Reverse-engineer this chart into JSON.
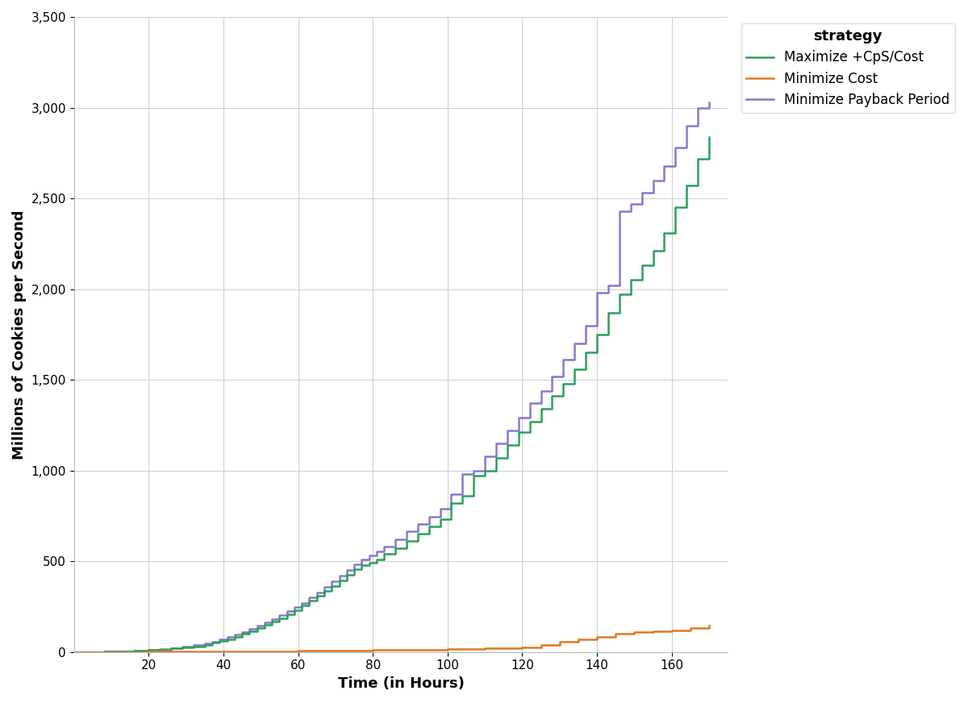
{
  "title": "",
  "xlabel": "Time (in Hours)",
  "ylabel": "Millions of Cookies per Second",
  "xlim": [
    0,
    175
  ],
  "ylim": [
    0,
    3500
  ],
  "yticks": [
    0,
    500,
    1000,
    1500,
    2000,
    2500,
    3000,
    3500
  ],
  "xticks": [
    20,
    40,
    60,
    80,
    100,
    120,
    140,
    160
  ],
  "legend_title": "strategy",
  "background_color": "#ffffff",
  "grid_color": "#d0d0d0",
  "series": [
    {
      "label": "Maximize +CpS/Cost",
      "color": "#2ca05a",
      "linewidth": 1.8,
      "x": [
        0,
        8,
        12,
        16,
        20,
        23,
        26,
        29,
        32,
        35,
        37,
        39,
        41,
        43,
        45,
        47,
        49,
        51,
        53,
        55,
        57,
        59,
        61,
        63,
        65,
        67,
        69,
        71,
        73,
        75,
        77,
        79,
        81,
        83,
        86,
        89,
        92,
        95,
        98,
        101,
        104,
        107,
        110,
        113,
        116,
        119,
        122,
        125,
        128,
        131,
        134,
        137,
        140,
        143,
        146,
        149,
        152,
        155,
        158,
        161,
        164,
        167,
        170
      ],
      "y": [
        0,
        2,
        4,
        7,
        10,
        14,
        19,
        25,
        32,
        40,
        50,
        60,
        72,
        85,
        100,
        115,
        130,
        148,
        166,
        185,
        207,
        230,
        255,
        282,
        308,
        335,
        365,
        395,
        425,
        455,
        480,
        490,
        510,
        540,
        570,
        610,
        650,
        690,
        730,
        820,
        860,
        970,
        1000,
        1070,
        1140,
        1210,
        1270,
        1340,
        1410,
        1480,
        1560,
        1650,
        1750,
        1870,
        1970,
        2050,
        2130,
        2210,
        2310,
        2450,
        2570,
        2720,
        2840
      ]
    },
    {
      "label": "Minimize Cost",
      "color": "#e07820",
      "linewidth": 1.8,
      "x": [
        0,
        20,
        40,
        60,
        80,
        100,
        110,
        120,
        125,
        130,
        135,
        140,
        145,
        150,
        155,
        160,
        165,
        170
      ],
      "y": [
        0,
        1,
        3,
        7,
        12,
        18,
        22,
        27,
        40,
        55,
        70,
        85,
        100,
        110,
        115,
        120,
        130,
        145
      ]
    },
    {
      "label": "Minimize Payback Period",
      "color": "#8878cc",
      "linewidth": 1.8,
      "x": [
        0,
        8,
        12,
        16,
        20,
        23,
        26,
        29,
        32,
        35,
        37,
        39,
        41,
        43,
        45,
        47,
        49,
        51,
        53,
        55,
        57,
        59,
        61,
        63,
        65,
        67,
        69,
        71,
        73,
        75,
        77,
        79,
        81,
        83,
        86,
        89,
        92,
        95,
        98,
        101,
        104,
        107,
        110,
        113,
        116,
        119,
        122,
        125,
        128,
        131,
        134,
        137,
        140,
        143,
        146,
        149,
        152,
        155,
        158,
        161,
        164,
        167,
        170
      ],
      "y": [
        0,
        2,
        5,
        8,
        12,
        17,
        22,
        29,
        37,
        46,
        57,
        68,
        82,
        97,
        112,
        128,
        145,
        163,
        182,
        202,
        224,
        248,
        272,
        300,
        328,
        357,
        388,
        419,
        451,
        483,
        510,
        530,
        555,
        580,
        620,
        665,
        705,
        745,
        790,
        870,
        980,
        1000,
        1080,
        1150,
        1220,
        1290,
        1370,
        1440,
        1520,
        1610,
        1700,
        1800,
        1980,
        2020,
        2430,
        2470,
        2530,
        2600,
        2680,
        2780,
        2900,
        3000,
        3030
      ]
    }
  ]
}
